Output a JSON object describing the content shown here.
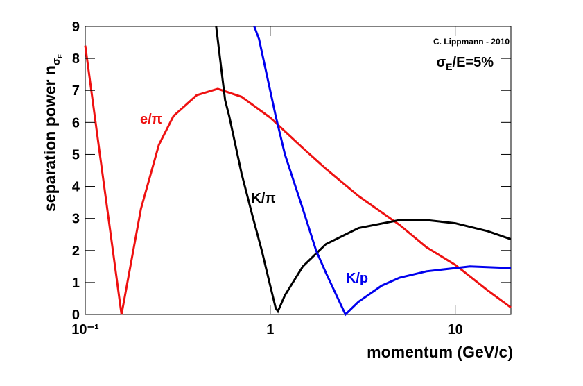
{
  "chart_data": {
    "type": "line",
    "annotations": {
      "credit": "C. Lippmann - 2010",
      "resolution": {
        "symbol": "σ",
        "subscript": "E",
        "rest": "/E=5%"
      }
    },
    "x_label": "momentum (GeV/c)",
    "y_label": {
      "text": "separation power n",
      "subscript": "σ",
      "subsubscript": "E"
    },
    "x_scale": "log",
    "xlim": [
      0.1,
      20
    ],
    "xticks": [
      {
        "value": 0.1,
        "label": "10⁻¹"
      },
      1,
      10
    ],
    "ylim": [
      0,
      9
    ],
    "yticks": [
      0,
      1,
      2,
      3,
      4,
      5,
      6,
      7,
      8,
      9
    ],
    "series": [
      {
        "name": "e/π",
        "color": "#ee1111",
        "x": [
          0.1,
          0.12,
          0.157,
          0.2,
          0.25,
          0.3,
          0.4,
          0.52,
          0.7,
          1,
          1.5,
          2,
          3,
          5,
          7,
          10,
          15,
          20
        ],
        "values": [
          8.4,
          5.0,
          0,
          3.3,
          5.3,
          6.2,
          6.85,
          7.05,
          6.8,
          6.15,
          5.2,
          4.55,
          3.7,
          2.8,
          2.1,
          1.55,
          0.75,
          0.22
        ]
      },
      {
        "name": "K/π",
        "color": "#000000",
        "x": [
          0.51,
          0.57,
          0.6,
          0.7,
          0.8,
          0.9,
          1.0,
          1.07,
          1.1,
          1.2,
          1.5,
          2,
          3,
          5,
          7,
          10,
          15,
          20
        ],
        "values": [
          9,
          6.7,
          6.2,
          4.4,
          3.1,
          2.0,
          0.9,
          0.2,
          0.1,
          0.6,
          1.5,
          2.2,
          2.7,
          2.95,
          2.95,
          2.85,
          2.6,
          2.35
        ]
      },
      {
        "name": "K/p",
        "color": "#0000ee",
        "x": [
          0.82,
          0.87,
          1.07,
          1.2,
          1.5,
          1.77,
          2,
          2.55,
          3,
          4,
          5,
          7,
          10,
          12,
          20
        ],
        "values": [
          9,
          8.6,
          6.2,
          5.0,
          3.3,
          2.0,
          1.3,
          0,
          0.4,
          0.9,
          1.15,
          1.35,
          1.45,
          1.5,
          1.45
        ]
      }
    ]
  }
}
